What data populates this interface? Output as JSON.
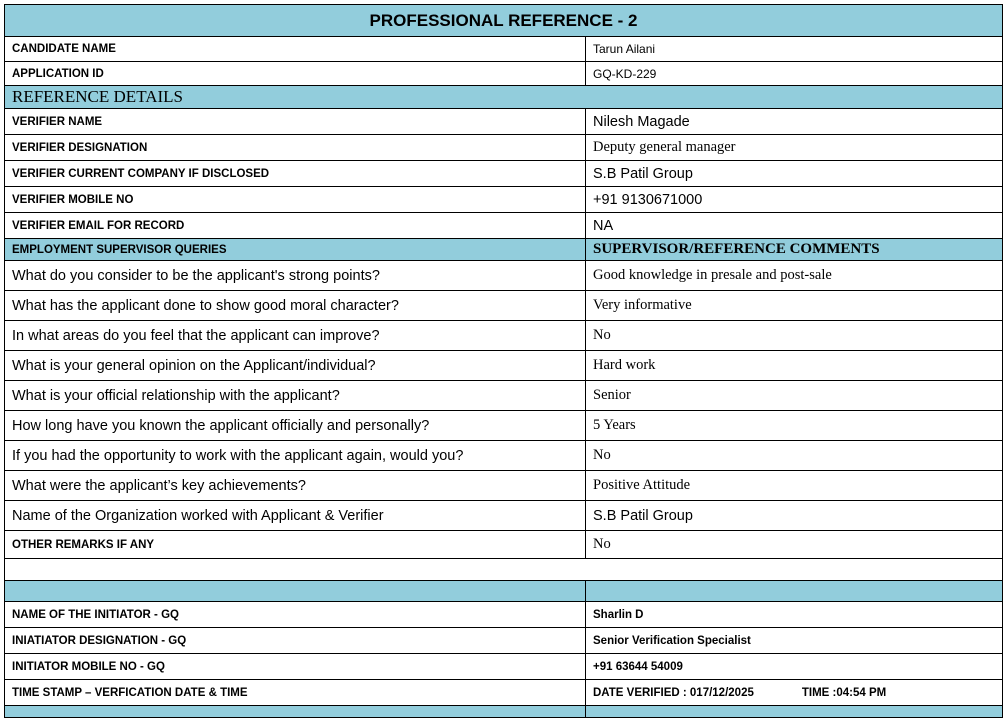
{
  "title": "PROFESSIONAL REFERENCE - 2",
  "candidate": {
    "label": "CANDIDATE  NAME",
    "value": "Tarun Ailani"
  },
  "application": {
    "label": "APPLICATION ID",
    "value": "GQ-KD-229"
  },
  "reference_section": "REFERENCE DETAILS",
  "verifier": [
    {
      "label": "VERIFIER NAME",
      "value": "Nilesh Magade"
    },
    {
      "label": "VERIFIER DESIGNATION",
      "value": "Deputy general manager"
    },
    {
      "label": "VERIFIER CURRENT COMPANY IF DISCLOSED",
      "value": "S.B Patil Group"
    },
    {
      "label": "VERIFIER MOBILE NO",
      "value": "+91 9130671000"
    },
    {
      "label": "VERIFIER EMAIL FOR RECORD",
      "value": "NA"
    }
  ],
  "queries_header": {
    "left": "EMPLOYMENT SUPERVISOR QUERIES",
    "right": "SUPERVISOR/REFERENCE COMMENTS"
  },
  "queries": [
    {
      "q": "What do you consider to be the applicant's strong points?",
      "a": "Good knowledge in presale and post-sale"
    },
    {
      "q": "What has the applicant done to show good moral character?",
      "a": "Very informative"
    },
    {
      "q": "In what areas do you feel that the applicant can improve?",
      "a": "No"
    },
    {
      "q": "What is your general opinion on the Applicant/individual?",
      "a": "Hard work"
    },
    {
      "q": "What is your official relationship with the applicant?",
      "a": "Senior"
    },
    {
      "q": "How long have you known the applicant officially and personally?",
      "a": "5 Years"
    },
    {
      "q": "If you had the opportunity to work with the applicant again, would you?",
      "a": "No"
    },
    {
      "q": "What were the applicant’s key achievements?",
      "a": "Positive Attitude"
    },
    {
      "q": "Name of the Organization worked with Applicant & Verifier",
      "a": "S.B Patil Group"
    }
  ],
  "other_remarks": {
    "label": "OTHER REMARKS IF ANY",
    "value": "No"
  },
  "initiator": [
    {
      "label": "NAME OF THE INITIATOR - GQ",
      "value": "Sharlin D"
    },
    {
      "label": "INIATIATOR DESIGNATION - GQ",
      "value": "Senior Verification Specialist"
    },
    {
      "label": "INITIATOR MOBILE NO - GQ",
      "value": "+91 63644 54009"
    }
  ],
  "timestamp": {
    "label": "TIME STAMP – VERFICATION DATE & TIME",
    "date": "DATE VERIFIED : 017/12/2025",
    "time": "TIME :04:54 PM"
  },
  "colors": {
    "header_bg": "#92cddc",
    "border": "#000000"
  }
}
